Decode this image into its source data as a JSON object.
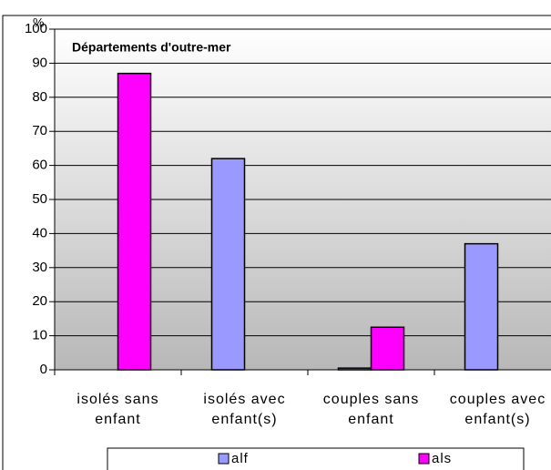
{
  "chart_data": {
    "type": "bar",
    "title": "Départements d'outre-mer",
    "y_label": "%",
    "categories": [
      "isolés sans enfant",
      "isolés avec enfant(s)",
      "couples sans enfant",
      "couples avec enfant(s)"
    ],
    "series": [
      {
        "name": "alf",
        "color": "#9999ff",
        "values": [
          null,
          62,
          0.5,
          37
        ]
      },
      {
        "name": "als",
        "color": "#ff00ff",
        "values": [
          87,
          null,
          12.5,
          null
        ]
      }
    ],
    "ylim": [
      0,
      100
    ],
    "yticks": [
      0,
      10,
      20,
      30,
      40,
      50,
      60,
      70,
      80,
      90,
      100
    ],
    "grid": true,
    "legend": "bottom"
  }
}
